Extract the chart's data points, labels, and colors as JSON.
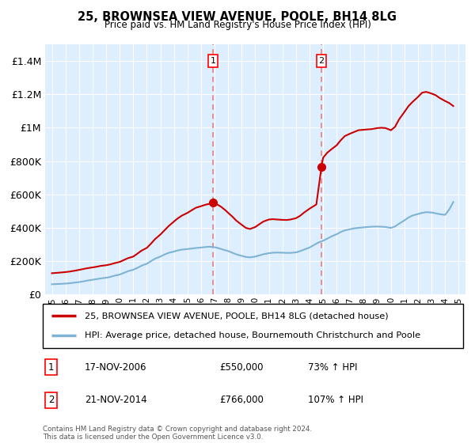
{
  "title": "25, BROWNSEA VIEW AVENUE, POOLE, BH14 8LG",
  "subtitle": "Price paid vs. HM Land Registry's House Price Index (HPI)",
  "legend_line1": "25, BROWNSEA VIEW AVENUE, POOLE, BH14 8LG (detached house)",
  "legend_line2": "HPI: Average price, detached house, Bournemouth Christchurch and Poole",
  "footer": "Contains HM Land Registry data © Crown copyright and database right 2024.\nThis data is licensed under the Open Government Licence v3.0.",
  "annotation1_label": "1",
  "annotation1_date": "17-NOV-2006",
  "annotation1_price": "£550,000",
  "annotation1_hpi": "73% ↑ HPI",
  "annotation2_label": "2",
  "annotation2_date": "21-NOV-2014",
  "annotation2_price": "£766,000",
  "annotation2_hpi": "107% ↑ HPI",
  "line_color_red": "#cc0000",
  "line_color_blue": "#7fb3d3",
  "annotation_line_color": "#e88080",
  "plot_bg_color": "#ddeeff",
  "ylim": [
    0,
    1500000
  ],
  "xlim_start": 1994.5,
  "xlim_end": 2025.5,
  "marker1_x": 2006.88,
  "marker1_y": 550000,
  "marker2_x": 2014.88,
  "marker2_y": 766000,
  "yticks": [
    0,
    200000,
    400000,
    600000,
    800000,
    1000000,
    1200000,
    1400000
  ],
  "red_x": [
    1995.0,
    1995.3,
    1995.6,
    1996.0,
    1996.3,
    1996.6,
    1997.0,
    1997.3,
    1997.6,
    1998.0,
    1998.3,
    1998.6,
    1999.0,
    1999.3,
    1999.6,
    2000.0,
    2000.3,
    2000.6,
    2001.0,
    2001.3,
    2001.6,
    2002.0,
    2002.3,
    2002.6,
    2003.0,
    2003.3,
    2003.6,
    2004.0,
    2004.3,
    2004.6,
    2005.0,
    2005.3,
    2005.6,
    2006.0,
    2006.3,
    2006.6,
    2006.88,
    2007.2,
    2007.5,
    2007.8,
    2008.0,
    2008.3,
    2008.6,
    2009.0,
    2009.3,
    2009.6,
    2010.0,
    2010.3,
    2010.6,
    2011.0,
    2011.3,
    2011.6,
    2012.0,
    2012.3,
    2012.6,
    2013.0,
    2013.3,
    2013.6,
    2014.0,
    2014.5,
    2014.88,
    2015.0,
    2015.3,
    2015.6,
    2016.0,
    2016.3,
    2016.6,
    2017.0,
    2017.3,
    2017.6,
    2018.0,
    2018.3,
    2018.6,
    2019.0,
    2019.3,
    2019.6,
    2020.0,
    2020.3,
    2020.6,
    2021.0,
    2021.3,
    2021.6,
    2022.0,
    2022.3,
    2022.6,
    2023.0,
    2023.3,
    2023.6,
    2024.0,
    2024.3,
    2024.6
  ],
  "red_y": [
    128000,
    130000,
    132000,
    135000,
    138000,
    142000,
    148000,
    153000,
    158000,
    163000,
    167000,
    172000,
    176000,
    181000,
    188000,
    196000,
    207000,
    218000,
    228000,
    245000,
    263000,
    280000,
    305000,
    332000,
    360000,
    385000,
    410000,
    438000,
    458000,
    474000,
    490000,
    505000,
    520000,
    530000,
    538000,
    544000,
    550000,
    540000,
    525000,
    505000,
    490000,
    468000,
    443000,
    418000,
    400000,
    393000,
    405000,
    422000,
    438000,
    450000,
    452000,
    450000,
    448000,
    447000,
    450000,
    458000,
    472000,
    492000,
    515000,
    540000,
    766000,
    820000,
    850000,
    870000,
    895000,
    925000,
    950000,
    965000,
    975000,
    985000,
    988000,
    990000,
    992000,
    998000,
    1000000,
    998000,
    985000,
    1005000,
    1050000,
    1095000,
    1130000,
    1155000,
    1185000,
    1210000,
    1215000,
    1205000,
    1195000,
    1178000,
    1160000,
    1148000,
    1130000
  ],
  "blue_x": [
    1995.0,
    1995.3,
    1995.6,
    1996.0,
    1996.3,
    1996.6,
    1997.0,
    1997.3,
    1997.6,
    1998.0,
    1998.3,
    1998.6,
    1999.0,
    1999.3,
    1999.6,
    2000.0,
    2000.3,
    2000.6,
    2001.0,
    2001.3,
    2001.6,
    2002.0,
    2002.3,
    2002.6,
    2003.0,
    2003.3,
    2003.6,
    2004.0,
    2004.3,
    2004.6,
    2005.0,
    2005.3,
    2005.6,
    2006.0,
    2006.3,
    2006.6,
    2007.0,
    2007.3,
    2007.6,
    2008.0,
    2008.3,
    2008.6,
    2009.0,
    2009.3,
    2009.6,
    2010.0,
    2010.3,
    2010.6,
    2011.0,
    2011.3,
    2011.6,
    2012.0,
    2012.3,
    2012.6,
    2013.0,
    2013.3,
    2013.6,
    2014.0,
    2014.3,
    2014.6,
    2015.0,
    2015.3,
    2015.6,
    2016.0,
    2016.3,
    2016.6,
    2017.0,
    2017.3,
    2017.6,
    2018.0,
    2018.3,
    2018.6,
    2019.0,
    2019.3,
    2019.6,
    2020.0,
    2020.3,
    2020.6,
    2021.0,
    2021.3,
    2021.6,
    2022.0,
    2022.3,
    2022.6,
    2023.0,
    2023.3,
    2023.6,
    2024.0,
    2024.3,
    2024.6
  ],
  "blue_y": [
    62000,
    63000,
    64000,
    66000,
    68000,
    71000,
    75000,
    79000,
    84000,
    89000,
    93000,
    97000,
    101000,
    106000,
    113000,
    120000,
    130000,
    140000,
    149000,
    160000,
    173000,
    185000,
    200000,
    215000,
    228000,
    240000,
    250000,
    258000,
    265000,
    270000,
    273000,
    276000,
    279000,
    282000,
    285000,
    287000,
    284000,
    278000,
    270000,
    261000,
    251000,
    241000,
    232000,
    226000,
    223000,
    228000,
    235000,
    242000,
    248000,
    251000,
    252000,
    251000,
    250000,
    250000,
    253000,
    260000,
    270000,
    282000,
    296000,
    310000,
    323000,
    335000,
    348000,
    362000,
    375000,
    385000,
    392000,
    397000,
    400000,
    403000,
    405000,
    407000,
    408000,
    407000,
    405000,
    400000,
    408000,
    425000,
    445000,
    462000,
    474000,
    483000,
    490000,
    494000,
    492000,
    487000,
    482000,
    478000,
    510000,
    555000
  ]
}
